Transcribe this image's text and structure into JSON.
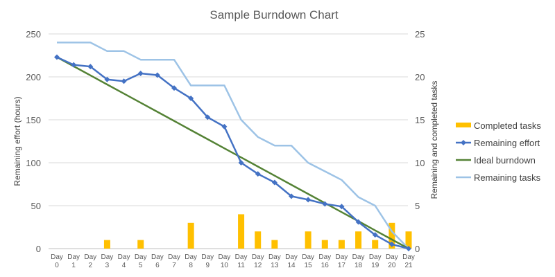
{
  "chart_data": {
    "type": "bar",
    "title": "Sample Burndown Chart",
    "categories": [
      "Day 0",
      "Day 1",
      "Day 2",
      "Day 3",
      "Day 4",
      "Day 5",
      "Day 6",
      "Day 7",
      "Day 8",
      "Day 9",
      "Day 10",
      "Day 11",
      "Day 12",
      "Day 13",
      "Day 14",
      "Day 15",
      "Day 16",
      "Day 17",
      "Day 18",
      "Day 19",
      "Day 20",
      "Day 21"
    ],
    "ylabel": "Remaining effort (hours)",
    "y2label": "Remaining and completed tasks",
    "ylim": [
      0,
      250
    ],
    "y2lim": [
      0,
      25
    ],
    "yticks": [
      0,
      50,
      100,
      150,
      200,
      250
    ],
    "y2ticks": [
      0,
      5,
      10,
      15,
      20,
      25
    ],
    "grid": true,
    "legend_position": "right",
    "series": [
      {
        "name": "Completed tasks",
        "kind": "bar",
        "axis": "right",
        "color": "#FFC000",
        "values": [
          0,
          0,
          0,
          1,
          0,
          1,
          0,
          0,
          3,
          0,
          0,
          4,
          2,
          1,
          0,
          2,
          1,
          1,
          2,
          1,
          3,
          2
        ]
      },
      {
        "name": "Remaining effort",
        "kind": "line-marker",
        "axis": "left",
        "color": "#4472C4",
        "values": [
          223,
          214,
          212,
          197,
          195,
          204,
          202,
          187,
          175,
          153,
          142,
          100,
          87,
          77,
          61,
          57,
          52,
          49,
          31,
          16,
          5,
          0
        ]
      },
      {
        "name": "Ideal burndown",
        "kind": "line",
        "axis": "left",
        "color": "#548235",
        "values": [
          223,
          212.4,
          201.8,
          191.1,
          180.5,
          169.9,
          159.3,
          148.7,
          138,
          127.4,
          116.8,
          106.2,
          95.6,
          84.9,
          74.3,
          63.7,
          53.1,
          42.5,
          31.9,
          21.2,
          10.6,
          0
        ]
      },
      {
        "name": "Remaining tasks",
        "kind": "line",
        "axis": "right",
        "color": "#9DC3E6",
        "values": [
          24,
          24,
          24,
          23,
          23,
          22,
          22,
          22,
          19,
          19,
          19,
          15,
          13,
          12,
          12,
          10,
          9,
          8,
          6,
          5,
          2,
          0
        ]
      }
    ]
  }
}
